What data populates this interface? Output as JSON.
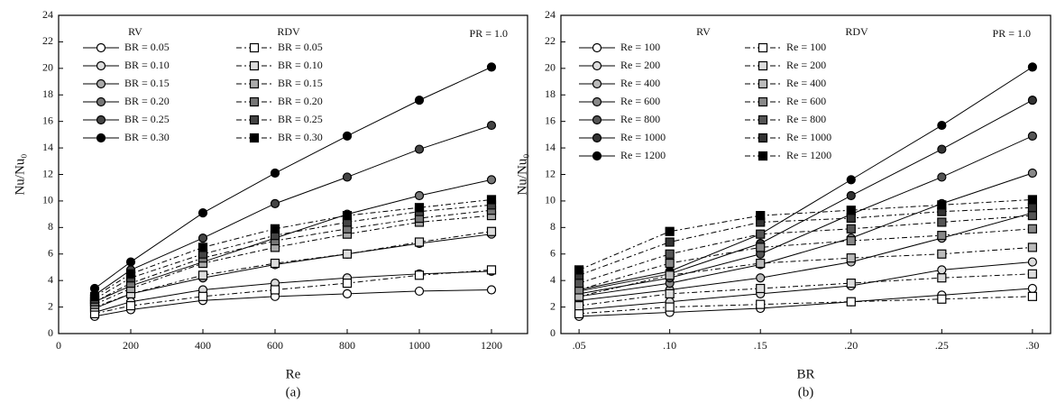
{
  "chart_data": [
    {
      "type": "line",
      "panel_label": "(a)",
      "x_label": "Re",
      "y_label": "Nu/Nu₀",
      "legend_headers": [
        "RV",
        "RDV"
      ],
      "annotation": "PR = 1.0",
      "x": [
        100,
        200,
        400,
        600,
        800,
        1000,
        1200
      ],
      "xlim": [
        0,
        1300
      ],
      "xticks": [
        0,
        200,
        400,
        600,
        800,
        1000,
        1200
      ],
      "ylim": [
        0,
        24
      ],
      "yticks": [
        0,
        2,
        4,
        6,
        8,
        10,
        12,
        14,
        16,
        18,
        20,
        22,
        24
      ],
      "grid": false,
      "legend": "upper left",
      "series": [
        {
          "name": "BR = 0.05",
          "color": "#000",
          "fill": "#fff",
          "marker": "circle",
          "dashed": false,
          "values": [
            1.3,
            1.8,
            2.5,
            2.8,
            3.0,
            3.2,
            3.3
          ]
        },
        {
          "name": "BR = 0.10",
          "color": "#000",
          "fill": "#ddd",
          "marker": "circle",
          "dashed": false,
          "values": [
            1.6,
            2.4,
            3.3,
            3.8,
            4.2,
            4.5,
            4.7
          ]
        },
        {
          "name": "BR = 0.15",
          "color": "#000",
          "fill": "#aaa",
          "marker": "circle",
          "dashed": false,
          "values": [
            1.9,
            3.0,
            4.2,
            5.2,
            6.0,
            6.8,
            7.5
          ]
        },
        {
          "name": "BR = 0.20",
          "color": "#000",
          "fill": "#777",
          "marker": "circle",
          "dashed": false,
          "values": [
            2.4,
            3.6,
            5.4,
            7.2,
            9.0,
            10.4,
            11.6
          ]
        },
        {
          "name": "BR = 0.25",
          "color": "#000",
          "fill": "#444",
          "marker": "circle",
          "dashed": false,
          "values": [
            2.9,
            4.8,
            7.2,
            9.8,
            11.8,
            13.9,
            15.7
          ]
        },
        {
          "name": "BR = 0.30",
          "color": "#000",
          "fill": "#000",
          "marker": "circle",
          "dashed": false,
          "values": [
            3.4,
            5.4,
            9.1,
            12.1,
            14.9,
            17.6,
            20.1
          ]
        },
        {
          "name": "BR = 0.05",
          "color": "#000",
          "fill": "#fff",
          "marker": "square",
          "dashed": true,
          "values": [
            1.5,
            2.1,
            2.8,
            3.3,
            3.8,
            4.4,
            4.8
          ]
        },
        {
          "name": "BR = 0.10",
          "color": "#000",
          "fill": "#ddd",
          "marker": "square",
          "dashed": true,
          "values": [
            2.0,
            3.0,
            4.4,
            5.3,
            6.0,
            6.9,
            7.7
          ]
        },
        {
          "name": "BR = 0.15",
          "color": "#000",
          "fill": "#aaa",
          "marker": "square",
          "dashed": true,
          "values": [
            2.2,
            3.4,
            5.3,
            6.5,
            7.5,
            8.4,
            8.9
          ]
        },
        {
          "name": "BR = 0.20",
          "color": "#000",
          "fill": "#777",
          "marker": "square",
          "dashed": true,
          "values": [
            2.4,
            3.8,
            5.7,
            7.0,
            7.9,
            8.7,
            9.3
          ]
        },
        {
          "name": "BR = 0.25",
          "color": "#000",
          "fill": "#444",
          "marker": "square",
          "dashed": true,
          "values": [
            2.6,
            4.2,
            6.0,
            7.4,
            8.4,
            9.2,
            9.7
          ]
        },
        {
          "name": "BR = 0.30",
          "color": "#000",
          "fill": "#000",
          "marker": "square",
          "dashed": true,
          "values": [
            2.8,
            4.5,
            6.5,
            7.9,
            8.9,
            9.5,
            10.1
          ]
        }
      ]
    },
    {
      "type": "line",
      "panel_label": "(b)",
      "x_label": "BR",
      "y_label": "Nu/Nu₀",
      "legend_headers": [
        "RV",
        "RDV"
      ],
      "annotation": "PR = 1.0",
      "x": [
        0.05,
        0.1,
        0.15,
        0.2,
        0.25,
        0.3
      ],
      "xlim": [
        0.04,
        0.31
      ],
      "xticks": [
        {
          "value": 0.05,
          "label": ".05"
        },
        {
          "value": 0.1,
          "label": ".10"
        },
        {
          "value": 0.15,
          "label": ".15"
        },
        {
          "value": 0.2,
          "label": ".20"
        },
        {
          "value": 0.25,
          "label": ".25"
        },
        {
          "value": 0.3,
          "label": ".30"
        }
      ],
      "ylim": [
        0,
        24
      ],
      "yticks": [
        0,
        2,
        4,
        6,
        8,
        10,
        12,
        14,
        16,
        18,
        20,
        22,
        24
      ],
      "grid": false,
      "legend": "upper left",
      "series": [
        {
          "name": "Re = 100",
          "color": "#000",
          "fill": "#fff",
          "marker": "circle",
          "dashed": false,
          "values": [
            1.3,
            1.6,
            1.9,
            2.4,
            2.9,
            3.4
          ]
        },
        {
          "name": "Re = 200",
          "color": "#000",
          "fill": "#ddd",
          "marker": "circle",
          "dashed": false,
          "values": [
            1.8,
            2.4,
            3.0,
            3.6,
            4.8,
            5.4
          ]
        },
        {
          "name": "Re = 400",
          "color": "#000",
          "fill": "#bbb",
          "marker": "circle",
          "dashed": false,
          "values": [
            2.5,
            3.3,
            4.2,
            5.4,
            7.2,
            9.1
          ]
        },
        {
          "name": "Re = 600",
          "color": "#000",
          "fill": "#888",
          "marker": "circle",
          "dashed": false,
          "values": [
            2.8,
            3.8,
            5.2,
            7.2,
            9.8,
            12.1
          ]
        },
        {
          "name": "Re = 800",
          "color": "#000",
          "fill": "#555",
          "marker": "circle",
          "dashed": false,
          "values": [
            3.0,
            4.2,
            6.0,
            9.0,
            11.8,
            14.9
          ]
        },
        {
          "name": "Re = 1000",
          "color": "#000",
          "fill": "#333",
          "marker": "circle",
          "dashed": false,
          "values": [
            3.2,
            4.5,
            6.8,
            10.4,
            13.9,
            17.6
          ]
        },
        {
          "name": "Re = 1200",
          "color": "#000",
          "fill": "#000",
          "marker": "circle",
          "dashed": false,
          "values": [
            3.3,
            4.7,
            7.5,
            11.6,
            15.7,
            20.1
          ]
        },
        {
          "name": "Re = 100",
          "color": "#000",
          "fill": "#fff",
          "marker": "square",
          "dashed": true,
          "values": [
            1.5,
            2.0,
            2.2,
            2.4,
            2.6,
            2.8
          ]
        },
        {
          "name": "Re = 200",
          "color": "#000",
          "fill": "#ddd",
          "marker": "square",
          "dashed": true,
          "values": [
            2.1,
            3.0,
            3.4,
            3.8,
            4.2,
            4.5
          ]
        },
        {
          "name": "Re = 400",
          "color": "#000",
          "fill": "#bbb",
          "marker": "square",
          "dashed": true,
          "values": [
            2.8,
            4.4,
            5.3,
            5.7,
            6.0,
            6.5
          ]
        },
        {
          "name": "Re = 600",
          "color": "#000",
          "fill": "#888",
          "marker": "square",
          "dashed": true,
          "values": [
            3.3,
            5.3,
            6.5,
            7.0,
            7.4,
            7.9
          ]
        },
        {
          "name": "Re = 800",
          "color": "#000",
          "fill": "#555",
          "marker": "square",
          "dashed": true,
          "values": [
            3.8,
            6.0,
            7.5,
            7.9,
            8.4,
            8.9
          ]
        },
        {
          "name": "Re = 1000",
          "color": "#000",
          "fill": "#333",
          "marker": "square",
          "dashed": true,
          "values": [
            4.4,
            6.9,
            8.4,
            8.7,
            9.2,
            9.5
          ]
        },
        {
          "name": "Re = 1200",
          "color": "#000",
          "fill": "#000",
          "marker": "square",
          "dashed": true,
          "values": [
            4.8,
            7.7,
            8.9,
            9.3,
            9.7,
            10.1
          ]
        }
      ]
    }
  ]
}
